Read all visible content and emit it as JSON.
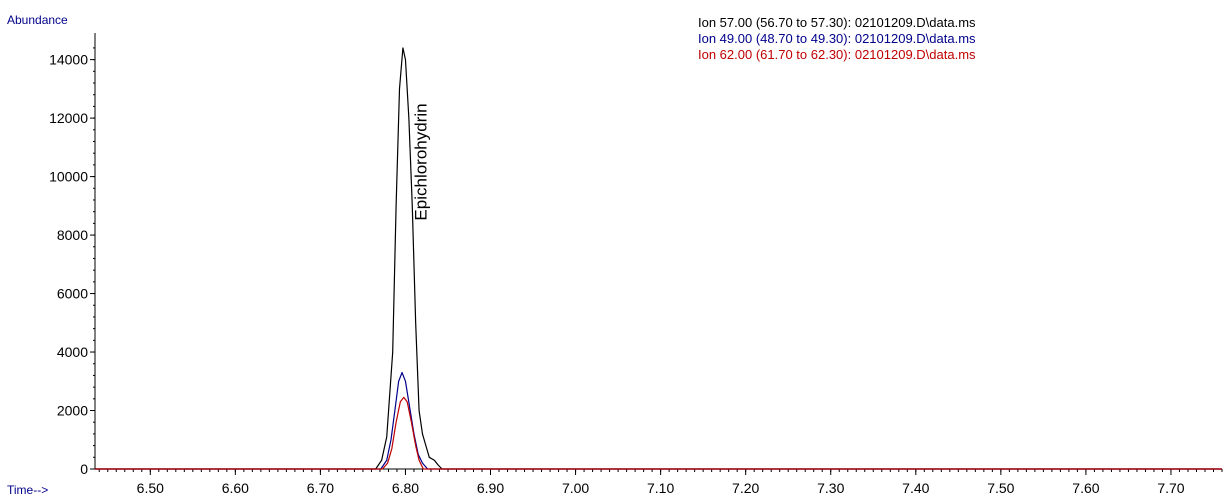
{
  "chart_data": {
    "type": "line",
    "ylabel": "Abundance",
    "xlabel": "Time-->",
    "xlim": [
      6.435,
      7.76
    ],
    "ylim": [
      0,
      14500
    ],
    "x_ticks": [
      6.5,
      6.6,
      6.7,
      6.8,
      6.9,
      7.0,
      7.1,
      7.2,
      7.3,
      7.4,
      7.5,
      7.6,
      7.7
    ],
    "x_tick_labels": [
      "6.50",
      "6.60",
      "6.70",
      "6.80",
      "6.90",
      "7.00",
      "7.10",
      "7.20",
      "7.30",
      "7.40",
      "7.50",
      "7.60",
      "7.70"
    ],
    "y_ticks": [
      0,
      2000,
      4000,
      6000,
      8000,
      10000,
      12000,
      14000
    ],
    "y_tick_labels": [
      "0",
      "2000",
      "4000",
      "6000",
      "8000",
      "10000",
      "12000",
      "14000"
    ],
    "grid": false,
    "legend_position": "top-right",
    "annotations": [
      {
        "text": "Epichlorohydrin",
        "x": 6.82,
        "y": 10500,
        "rotation": -90
      }
    ],
    "series": [
      {
        "name": "Ion  57.00 (56.70 to 57.30): 02101209.D\\data.ms",
        "color": "#000000",
        "x": [
          6.435,
          6.765,
          6.772,
          6.778,
          6.785,
          6.789,
          6.793,
          6.797,
          6.8,
          6.804,
          6.808,
          6.812,
          6.816,
          6.82,
          6.824,
          6.828,
          6.834,
          6.838,
          6.843,
          7.76
        ],
        "y": [
          0,
          0,
          300,
          1100,
          4000,
          9000,
          13000,
          14400,
          14000,
          12000,
          9000,
          5000,
          2000,
          1200,
          800,
          400,
          300,
          150,
          0,
          0
        ]
      },
      {
        "name": "Ion  49.00 (48.70 to 49.30): 02101209.D\\data.ms",
        "color": "#00008b",
        "x": [
          6.435,
          6.771,
          6.778,
          6.783,
          6.788,
          6.792,
          6.796,
          6.8,
          6.805,
          6.81,
          6.815,
          6.82,
          6.826,
          7.76
        ],
        "y": [
          0,
          0,
          300,
          1000,
          2100,
          3000,
          3300,
          3000,
          2100,
          1200,
          500,
          200,
          0,
          0
        ]
      },
      {
        "name": "Ion  62.00 (61.70 to 62.30): 02101209.D\\data.ms",
        "color": "#c00000",
        "x": [
          6.435,
          6.773,
          6.779,
          6.784,
          6.789,
          6.794,
          6.798,
          6.802,
          6.807,
          6.812,
          6.816,
          6.821,
          7.76
        ],
        "y": [
          0,
          0,
          200,
          700,
          1600,
          2300,
          2450,
          2300,
          1600,
          800,
          300,
          0,
          0
        ]
      }
    ]
  }
}
